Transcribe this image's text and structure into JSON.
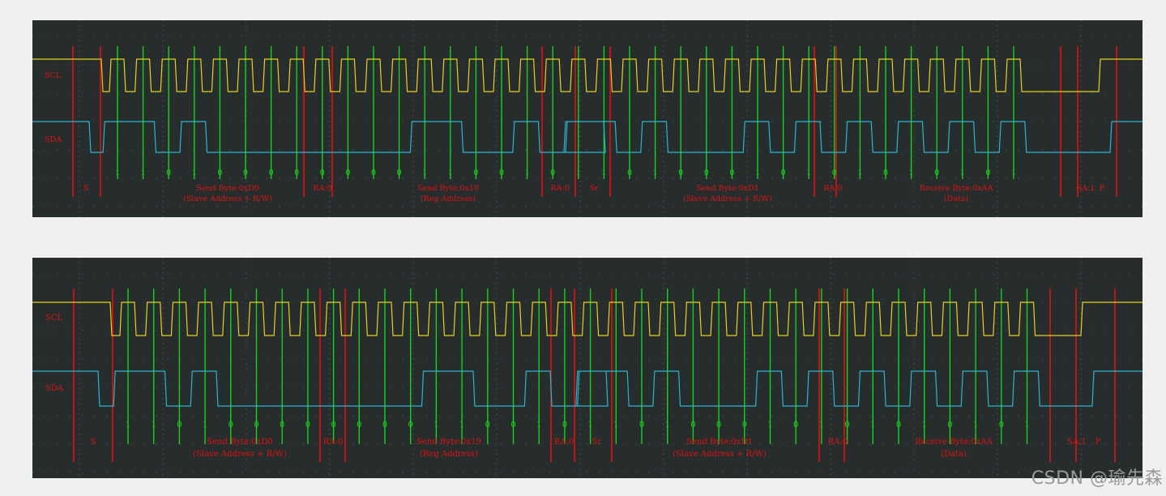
{
  "colors": {
    "background": "#f0f0f0",
    "screen": "#272c2d",
    "scl": "#e6d21c",
    "sda": "#29b6cf",
    "green_marker": "#18d21c",
    "red_marker": "#e01212",
    "grid": "#6f8a87"
  },
  "watermark": "CSDN @瑜先森",
  "captures": [
    {
      "id": "top",
      "channel_labels": [
        "SCL",
        "SDA"
      ],
      "bits": [
        "1",
        "1",
        "0",
        "1",
        "0",
        "0",
        "0",
        "0",
        "0",
        "0",
        "0",
        "0",
        "1",
        "1",
        "0",
        "0",
        "1",
        "0",
        "1",
        "1",
        "0",
        "1",
        "0",
        "0",
        "0",
        "1",
        "0",
        "1",
        "0",
        "1",
        "0",
        "1",
        "0",
        "1",
        "0",
        "1"
      ],
      "annotations": [
        {
          "lines": [
            "S"
          ]
        },
        {
          "lines": [
            "Send Byte:0xD0",
            "(Slave Address + R/W)"
          ]
        },
        {
          "lines": [
            "RA:0"
          ]
        },
        {
          "lines": [
            "Send Byte:0x19",
            "(Reg Address)"
          ]
        },
        {
          "lines": [
            "RA:0"
          ]
        },
        {
          "lines": [
            "Sr"
          ]
        },
        {
          "lines": [
            "Send Byte:0xD1",
            "(Slave Address + R/W)"
          ]
        },
        {
          "lines": [
            "RA:0"
          ]
        },
        {
          "lines": [
            "Receive Byte:0xAA",
            "(Data)"
          ]
        },
        {
          "lines": [
            "SA:1"
          ]
        },
        {
          "lines": [
            "P"
          ]
        }
      ]
    },
    {
      "id": "bottom",
      "channel_labels": [
        "SCL",
        "SDA"
      ],
      "bits": [
        "1",
        "1",
        "0",
        "1",
        "0",
        "0",
        "0",
        "0",
        "0",
        "0",
        "0",
        "0",
        "1",
        "1",
        "0",
        "0",
        "1",
        "0",
        "1",
        "1",
        "0",
        "1",
        "0",
        "0",
        "0",
        "1",
        "0",
        "1",
        "0",
        "1",
        "0",
        "1",
        "0",
        "1",
        "0",
        "1"
      ],
      "annotations": [
        {
          "lines": [
            "S"
          ]
        },
        {
          "lines": [
            "Send Byte:0xD0",
            "(Slave Address + R/W)"
          ]
        },
        {
          "lines": [
            "RA:0"
          ]
        },
        {
          "lines": [
            "Send Byte:0x19",
            "(Reg Address)"
          ]
        },
        {
          "lines": [
            "RA:0"
          ]
        },
        {
          "lines": [
            "Sr"
          ]
        },
        {
          "lines": [
            "Send Byte:0xD1",
            "(Slave Address + R/W)"
          ]
        },
        {
          "lines": [
            "RA:0"
          ]
        },
        {
          "lines": [
            "Receive Byte:0xAA",
            "(Data)"
          ]
        },
        {
          "lines": [
            "SA:1"
          ]
        },
        {
          "lines": [
            "P"
          ]
        }
      ]
    }
  ]
}
